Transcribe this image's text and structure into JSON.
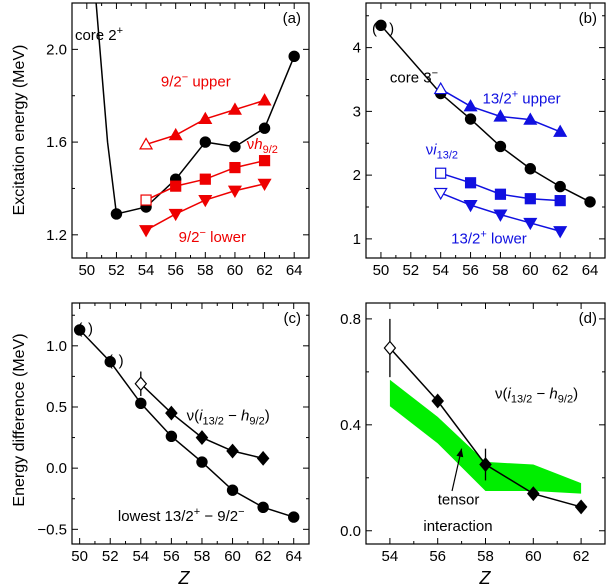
{
  "figure": {
    "xlabel_bottom_left": "Z",
    "xlabel_bottom_right": "Z",
    "ylabel_top": "Excitation energy (MeV)",
    "ylabel_bottom": "Energy difference (MeV)"
  },
  "colors": {
    "black": "#000000",
    "red": "#ee0000",
    "blue": "#1010e0",
    "green": "#00ee00"
  },
  "chart_data": [
    {
      "id": "a",
      "type": "line",
      "panel_label": "(a)",
      "xlim": [
        49,
        65
      ],
      "ylim": [
        1.1,
        2.2
      ],
      "xticks": [
        50,
        52,
        54,
        56,
        58,
        60,
        62,
        64
      ],
      "yticks": [
        1.2,
        1.6,
        2.0
      ],
      "ytick_labels": [
        "1.2",
        "1.6",
        "2.0"
      ],
      "annotations": [
        {
          "text": "core 2",
          "sup": "+",
          "x": 49.2,
          "y": 2.04,
          "color": "black"
        },
        {
          "text": "9/2",
          "sup": "−",
          "tail": " upper",
          "x": 55.0,
          "y": 1.84,
          "color": "red"
        },
        {
          "text": "νh",
          "sub": "9/2",
          "x": 60.8,
          "y": 1.57,
          "color": "red"
        },
        {
          "text": "9/2",
          "sup": "−",
          "tail": " lower",
          "x": 56.2,
          "y": 1.17,
          "color": "red"
        }
      ],
      "series": [
        {
          "color": "black",
          "marker": "circle",
          "x": [
            52,
            54,
            56,
            58,
            60,
            62,
            64
          ],
          "y": [
            1.29,
            1.32,
            1.44,
            1.6,
            1.58,
            1.66,
            1.97
          ],
          "lead_in": {
            "x": [
              50.5,
              51.4,
              52
            ],
            "y": [
              2.3,
              1.6,
              1.29
            ]
          }
        },
        {
          "color": "red",
          "marker": "triangle-up",
          "x": [
            54,
            56,
            58,
            60,
            62
          ],
          "y": [
            1.59,
            1.63,
            1.7,
            1.74,
            1.78
          ],
          "open_first": true
        },
        {
          "color": "red",
          "marker": "square",
          "x": [
            54,
            56,
            58,
            60,
            62
          ],
          "y": [
            1.35,
            1.41,
            1.44,
            1.49,
            1.52
          ],
          "open_first": true
        },
        {
          "color": "red",
          "marker": "triangle-down",
          "x": [
            54,
            56,
            58,
            60,
            62
          ],
          "y": [
            1.22,
            1.29,
            1.35,
            1.39,
            1.42
          ]
        }
      ]
    },
    {
      "id": "b",
      "type": "line",
      "panel_label": "(b)",
      "xlim": [
        49,
        65
      ],
      "ylim": [
        0.7,
        4.7
      ],
      "xticks": [
        50,
        52,
        54,
        56,
        58,
        60,
        62,
        64
      ],
      "yticks": [
        1,
        2,
        3,
        4
      ],
      "ytick_labels": [
        "1",
        "2",
        "3",
        "4"
      ],
      "annotations": [
        {
          "text": "core 3",
          "sup": "−",
          "x": 50.6,
          "y": 3.45,
          "color": "black"
        },
        {
          "text": "(",
          "x": 49.4,
          "y": 4.22,
          "color": "black"
        },
        {
          "text": ")",
          "x": 50.55,
          "y": 4.22,
          "color": "black"
        },
        {
          "text": "13/2",
          "sup": "+",
          "tail": " upper",
          "x": 56.8,
          "y": 3.12,
          "color": "blue"
        },
        {
          "text": "νi",
          "sub": "13/2",
          "x": 53.0,
          "y": 2.32,
          "color": "blue"
        },
        {
          "text": "13/2",
          "sup": "+",
          "tail": " lower",
          "x": 54.7,
          "y": 0.93,
          "color": "blue"
        }
      ],
      "series": [
        {
          "color": "black",
          "marker": "circle",
          "x": [
            50,
            54,
            56,
            58,
            60,
            62,
            64
          ],
          "y": [
            4.35,
            3.28,
            2.88,
            2.45,
            2.1,
            1.82,
            1.58
          ]
        },
        {
          "color": "blue",
          "marker": "triangle-up",
          "x": [
            54,
            56,
            58,
            60,
            62
          ],
          "y": [
            3.35,
            3.08,
            2.92,
            2.87,
            2.68
          ],
          "open_first": true
        },
        {
          "color": "blue",
          "marker": "square",
          "x": [
            54,
            56,
            58,
            60,
            62
          ],
          "y": [
            2.03,
            1.88,
            1.7,
            1.63,
            1.6
          ],
          "open_first": true
        },
        {
          "color": "blue",
          "marker": "triangle-down",
          "x": [
            54,
            56,
            58,
            60,
            62
          ],
          "y": [
            1.72,
            1.53,
            1.38,
            1.25,
            1.12
          ],
          "open_first": true
        }
      ]
    },
    {
      "id": "c",
      "type": "line",
      "panel_label": "(c)",
      "xlim": [
        49.5,
        65
      ],
      "ylim": [
        -0.62,
        1.35
      ],
      "xticks": [
        50,
        52,
        54,
        56,
        58,
        60,
        62,
        64
      ],
      "yticks": [
        -0.5,
        0.0,
        0.5,
        1.0
      ],
      "ytick_labels": [
        "−0.5",
        "0.0",
        "0.5",
        "1.0"
      ],
      "annotations": [
        {
          "text": "ν(i",
          "sub": "13/2",
          "tail": " − h",
          "sub2": "9/2",
          "tail2": ")",
          "x": 57.0,
          "y": 0.39,
          "color": "black"
        },
        {
          "text": "lowest 13/2",
          "sup": "+",
          "tail": " − 9/2",
          "sup2": "−",
          "x": 52.5,
          "y": -0.43,
          "color": "black"
        },
        {
          "text": "(",
          "x": 49.85,
          "y": 1.1,
          "color": "black"
        },
        {
          "text": ")",
          "x": 50.55,
          "y": 1.1,
          "color": "black"
        },
        {
          "text": "(",
          "x": 51.85,
          "y": 0.84,
          "color": "black"
        },
        {
          "text": ")",
          "x": 52.55,
          "y": 0.84,
          "color": "black"
        }
      ],
      "series": [
        {
          "color": "black",
          "marker": "circle",
          "x": [
            50,
            52,
            54,
            56,
            58,
            60,
            62,
            64
          ],
          "y": [
            1.13,
            0.87,
            0.53,
            0.26,
            0.05,
            -0.18,
            -0.32,
            -0.4
          ]
        },
        {
          "color": "black",
          "marker": "diamond",
          "x": [
            54,
            56,
            58,
            60,
            62
          ],
          "y": [
            0.69,
            0.45,
            0.25,
            0.14,
            0.08
          ],
          "open_first": true,
          "error_first": 0.1
        }
      ]
    },
    {
      "id": "d",
      "type": "line",
      "panel_label": "(d)",
      "xlim": [
        53.0,
        63.0
      ],
      "ylim": [
        -0.05,
        0.86
      ],
      "xticks": [
        54,
        56,
        58,
        60,
        62
      ],
      "yticks": [
        0.0,
        0.4,
        0.8
      ],
      "ytick_labels": [
        "0.0",
        "0.4",
        "0.8"
      ],
      "annotations": [
        {
          "text": "ν(i",
          "sub": "13/2",
          "tail": " − h",
          "sub2": "9/2",
          "tail2": ")",
          "x": 58.4,
          "y": 0.5,
          "color": "black"
        },
        {
          "text": "tensor",
          "x": 56.0,
          "y": 0.1,
          "color": "black"
        },
        {
          "text": "interaction",
          "x": 55.4,
          "y": 0.0,
          "color": "black"
        }
      ],
      "band": {
        "color": "green",
        "x": [
          54,
          56,
          58,
          60,
          62
        ],
        "upper": [
          0.57,
          0.43,
          0.26,
          0.25,
          0.18
        ],
        "lower": [
          0.47,
          0.33,
          0.15,
          0.15,
          0.14
        ]
      },
      "arrow": {
        "from": [
          56.6,
          0.15
        ],
        "to": [
          57.0,
          0.31
        ]
      },
      "series": [
        {
          "color": "black",
          "marker": "diamond",
          "x": [
            54,
            56,
            58,
            60,
            62
          ],
          "y": [
            0.69,
            0.49,
            0.25,
            0.14,
            0.09
          ],
          "open_first": true,
          "errors": [
            0.11,
            0,
            0.06,
            0,
            0
          ]
        }
      ]
    }
  ]
}
